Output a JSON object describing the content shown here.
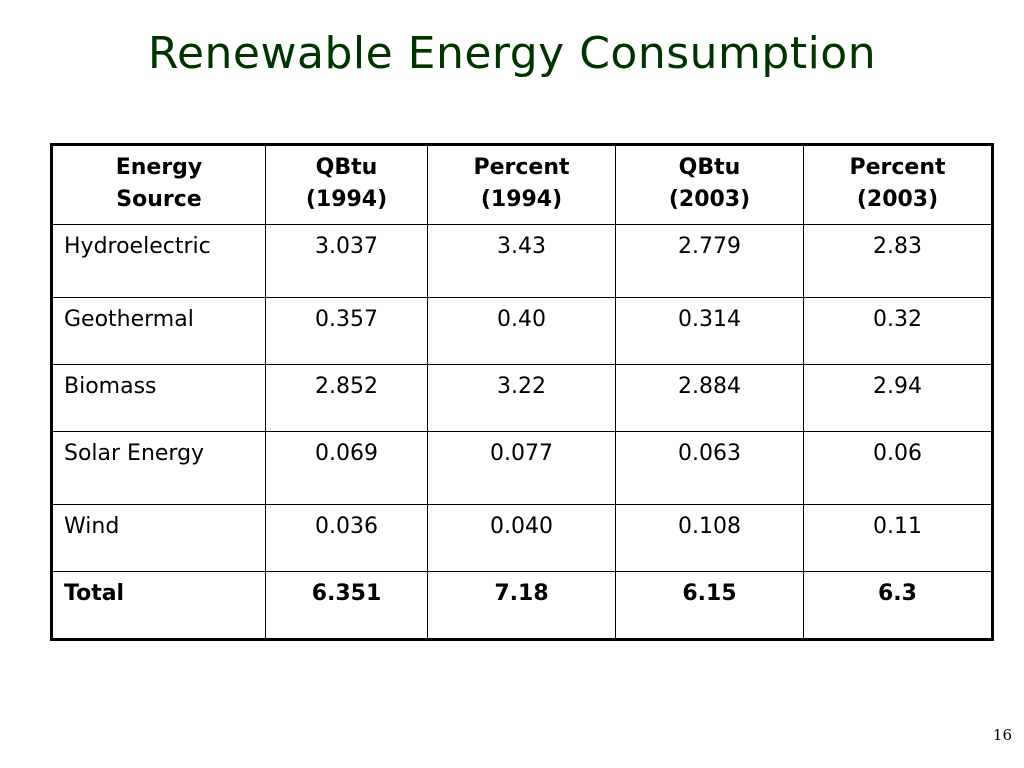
{
  "slide": {
    "title": "Renewable Energy Consumption",
    "page_number": "16",
    "title_color": "#003300"
  },
  "table": {
    "headers": [
      {
        "line1": "Energy",
        "line2": "Source"
      },
      {
        "line1": "QBtu",
        "line2": "(1994)"
      },
      {
        "line1": "Percent",
        "line2": "(1994)"
      },
      {
        "line1": "QBtu",
        "line2": "(2003)"
      },
      {
        "line1": "Percent",
        "line2": "(2003)"
      }
    ],
    "rows": [
      {
        "source": "Hydroelectric",
        "qbtu_1994": "3.037",
        "percent_1994": "3.43",
        "qbtu_2003": "2.779",
        "percent_2003": "2.83"
      },
      {
        "source": "Geothermal",
        "qbtu_1994": "0.357",
        "percent_1994": "0.40",
        "qbtu_2003": "0.314",
        "percent_2003": "0.32"
      },
      {
        "source": "Biomass",
        "qbtu_1994": "2.852",
        "percent_1994": "3.22",
        "qbtu_2003": "2.884",
        "percent_2003": "2.94"
      },
      {
        "source": "Solar Energy",
        "qbtu_1994": "0.069",
        "percent_1994": "0.077",
        "qbtu_2003": "0.063",
        "percent_2003": "0.06"
      },
      {
        "source": "Wind",
        "qbtu_1994": "0.036",
        "percent_1994": "0.040",
        "qbtu_2003": "0.108",
        "percent_2003": "0.11"
      }
    ],
    "total": {
      "source": "Total",
      "qbtu_1994": "6.351",
      "percent_1994": "7.18",
      "qbtu_2003": "6.15",
      "percent_2003": "6.3"
    }
  }
}
